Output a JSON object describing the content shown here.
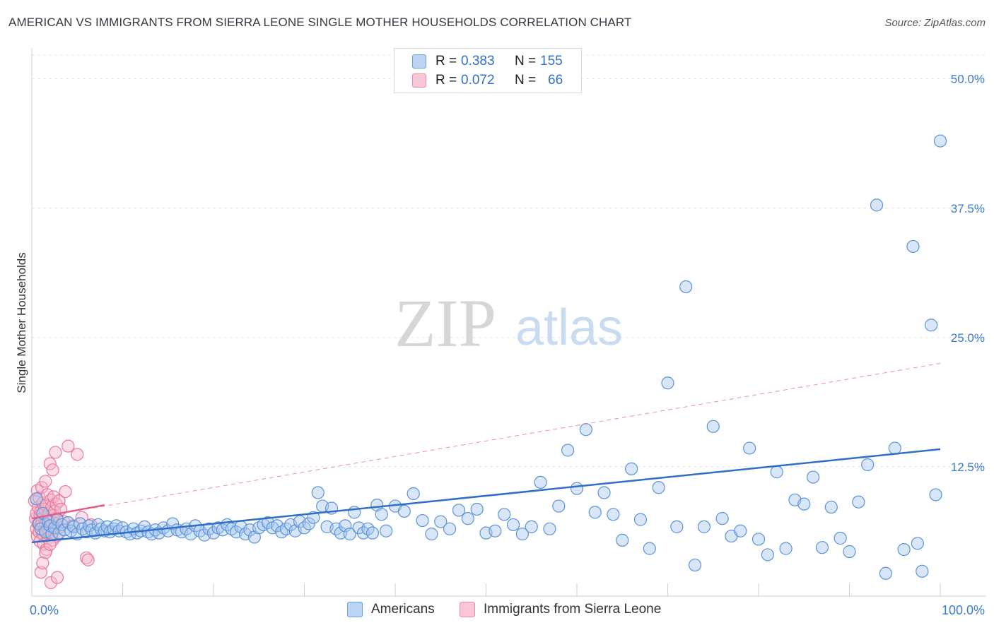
{
  "title": "AMERICAN VS IMMIGRANTS FROM SIERRA LEONE SINGLE MOTHER HOUSEHOLDS CORRELATION CHART",
  "source": "Source: ZipAtlas.com",
  "watermark": {
    "zip": "ZIP",
    "atlas": "atlas"
  },
  "legend": {
    "rows": [
      {
        "r_label": "R =",
        "r_value": "0.383",
        "n_label": "N =",
        "n_value": "155"
      },
      {
        "r_label": "R =",
        "r_value": "0.072",
        "n_label": "N =",
        "n_value": "66"
      }
    ]
  },
  "colors": {
    "americans_fill": "#a8c8f0",
    "americans_stroke": "#5b93d8",
    "americans_line": "#2f6fc9",
    "sierra_fill": "#f7b8cc",
    "sierra_stroke": "#e8789c",
    "sierra_line": "#e06090",
    "tick_text": "#3a7bd5"
  },
  "chart_data": {
    "type": "scatter",
    "title": "AMERICAN VS IMMIGRANTS FROM SIERRA LEONE SINGLE MOTHER HOUSEHOLDS CORRELATION CHART",
    "xlabel": "",
    "ylabel": "Single Mother Households",
    "xlim": [
      0,
      100
    ],
    "ylim": [
      0,
      50
    ],
    "x_tick_labels": [
      "0.0%",
      "100.0%"
    ],
    "y_ticks": [
      12.5,
      25.0,
      37.5,
      50.0
    ],
    "y_tick_labels": [
      "12.5%",
      "25.0%",
      "37.5%",
      "50.0%"
    ],
    "grid": true,
    "legend_position": "top-center",
    "series": [
      {
        "name": "Americans",
        "trend": {
          "x": [
            0,
            100
          ],
          "y": [
            5.2,
            14.2
          ],
          "style": "solid"
        },
        "points": [
          [
            0.5,
            9.4
          ],
          [
            0.8,
            7.0
          ],
          [
            1.0,
            6.5
          ],
          [
            1.2,
            8.0
          ],
          [
            1.5,
            6.2
          ],
          [
            1.8,
            7.2
          ],
          [
            2.0,
            6.8
          ],
          [
            2.2,
            6.0
          ],
          [
            2.5,
            6.6
          ],
          [
            2.8,
            7.4
          ],
          [
            3.0,
            6.1
          ],
          [
            3.3,
            6.9
          ],
          [
            3.6,
            6.4
          ],
          [
            4.0,
            7.1
          ],
          [
            4.3,
            6.3
          ],
          [
            4.6,
            6.7
          ],
          [
            5.0,
            6.0
          ],
          [
            5.3,
            7.0
          ],
          [
            5.6,
            6.5
          ],
          [
            6.0,
            6.2
          ],
          [
            6.3,
            6.8
          ],
          [
            6.6,
            6.4
          ],
          [
            7.0,
            6.1
          ],
          [
            7.3,
            6.9
          ],
          [
            7.6,
            6.5
          ],
          [
            8.0,
            6.3
          ],
          [
            8.3,
            6.7
          ],
          [
            8.6,
            6.2
          ],
          [
            9.0,
            6.5
          ],
          [
            9.3,
            6.8
          ],
          [
            9.6,
            6.3
          ],
          [
            10.0,
            6.6
          ],
          [
            10.4,
            6.2
          ],
          [
            10.8,
            6.0
          ],
          [
            11.2,
            6.5
          ],
          [
            11.6,
            6.1
          ],
          [
            12.0,
            6.3
          ],
          [
            12.4,
            6.7
          ],
          [
            12.8,
            6.2
          ],
          [
            13.2,
            6.0
          ],
          [
            13.6,
            6.4
          ],
          [
            14.0,
            6.1
          ],
          [
            14.5,
            6.6
          ],
          [
            15.0,
            6.3
          ],
          [
            15.5,
            7.0
          ],
          [
            16.0,
            6.4
          ],
          [
            16.5,
            6.2
          ],
          [
            17.0,
            6.5
          ],
          [
            17.5,
            6.0
          ],
          [
            18.0,
            6.8
          ],
          [
            18.5,
            6.3
          ],
          [
            19.0,
            5.9
          ],
          [
            19.5,
            6.5
          ],
          [
            20.0,
            6.1
          ],
          [
            20.5,
            6.6
          ],
          [
            21.0,
            6.4
          ],
          [
            21.5,
            6.9
          ],
          [
            22.0,
            6.5
          ],
          [
            22.5,
            6.2
          ],
          [
            23.0,
            6.7
          ],
          [
            23.5,
            6.0
          ],
          [
            24.0,
            6.4
          ],
          [
            24.5,
            5.7
          ],
          [
            25.0,
            6.6
          ],
          [
            25.5,
            6.9
          ],
          [
            26.0,
            7.1
          ],
          [
            26.5,
            6.6
          ],
          [
            27.0,
            6.8
          ],
          [
            27.5,
            6.2
          ],
          [
            28.0,
            6.5
          ],
          [
            28.5,
            6.9
          ],
          [
            29.0,
            6.3
          ],
          [
            29.5,
            7.2
          ],
          [
            30.0,
            6.6
          ],
          [
            30.5,
            7.0
          ],
          [
            31.0,
            7.6
          ],
          [
            31.5,
            10.0
          ],
          [
            32.0,
            8.7
          ],
          [
            32.5,
            6.7
          ],
          [
            33.0,
            8.5
          ],
          [
            33.5,
            6.5
          ],
          [
            34.0,
            6.1
          ],
          [
            34.5,
            6.8
          ],
          [
            35.0,
            6.0
          ],
          [
            35.5,
            8.1
          ],
          [
            36.0,
            6.6
          ],
          [
            36.5,
            6.1
          ],
          [
            37.0,
            6.5
          ],
          [
            37.5,
            6.1
          ],
          [
            38.0,
            8.8
          ],
          [
            38.5,
            7.9
          ],
          [
            39.0,
            6.3
          ],
          [
            40.0,
            8.7
          ],
          [
            41.0,
            8.2
          ],
          [
            42.0,
            9.9
          ],
          [
            43.0,
            7.3
          ],
          [
            44.0,
            6.0
          ],
          [
            45.0,
            7.2
          ],
          [
            46.0,
            6.5
          ],
          [
            47.0,
            8.3
          ],
          [
            48.0,
            7.5
          ],
          [
            49.0,
            8.4
          ],
          [
            50.0,
            6.1
          ],
          [
            51.0,
            6.3
          ],
          [
            52.0,
            7.9
          ],
          [
            53.0,
            6.9
          ],
          [
            54.0,
            6.0
          ],
          [
            55.0,
            6.7
          ],
          [
            56.0,
            11.0
          ],
          [
            57.0,
            6.5
          ],
          [
            58.0,
            8.7
          ],
          [
            59.0,
            14.1
          ],
          [
            60.0,
            10.4
          ],
          [
            61.0,
            16.1
          ],
          [
            62.0,
            8.1
          ],
          [
            63.0,
            10.0
          ],
          [
            64.0,
            7.9
          ],
          [
            65.0,
            5.4
          ],
          [
            66.0,
            12.3
          ],
          [
            67.0,
            7.4
          ],
          [
            68.0,
            4.6
          ],
          [
            69.0,
            10.5
          ],
          [
            70.0,
            20.6
          ],
          [
            71.0,
            6.7
          ],
          [
            72.0,
            29.9
          ],
          [
            73.0,
            3.0
          ],
          [
            74.0,
            6.7
          ],
          [
            75.0,
            16.4
          ],
          [
            76.0,
            7.5
          ],
          [
            77.0,
            5.8
          ],
          [
            78.0,
            6.3
          ],
          [
            79.0,
            14.3
          ],
          [
            80.0,
            5.5
          ],
          [
            81.0,
            4.0
          ],
          [
            82.0,
            12.0
          ],
          [
            83.0,
            4.6
          ],
          [
            84.0,
            9.3
          ],
          [
            85.0,
            8.9
          ],
          [
            86.0,
            11.5
          ],
          [
            87.0,
            4.7
          ],
          [
            88.0,
            8.6
          ],
          [
            89.0,
            5.6
          ],
          [
            90.0,
            4.3
          ],
          [
            91.0,
            9.1
          ],
          [
            92.0,
            12.7
          ],
          [
            93.0,
            37.8
          ],
          [
            94.0,
            2.2
          ],
          [
            95.0,
            14.3
          ],
          [
            96.0,
            4.5
          ],
          [
            97.0,
            33.8
          ],
          [
            98.0,
            2.4
          ],
          [
            99.0,
            26.2
          ],
          [
            99.5,
            9.8
          ],
          [
            100.0,
            44.0
          ],
          [
            97.5,
            5.1
          ]
        ]
      },
      {
        "name": "Immigrants from Sierra Leone",
        "trend": {
          "x": [
            0,
            8
          ],
          "y": [
            7.5,
            8.8
          ],
          "style": "solid",
          "extended": {
            "x": [
              0,
              100
            ],
            "y": [
              7.5,
              22.5
            ],
            "style": "dashed"
          }
        },
        "points": [
          [
            0.3,
            9.2
          ],
          [
            0.4,
            7.5
          ],
          [
            0.5,
            8.0
          ],
          [
            0.5,
            6.5
          ],
          [
            0.6,
            10.2
          ],
          [
            0.6,
            5.8
          ],
          [
            0.7,
            7.0
          ],
          [
            0.7,
            8.6
          ],
          [
            0.8,
            6.2
          ],
          [
            0.8,
            9.5
          ],
          [
            0.9,
            7.8
          ],
          [
            0.9,
            5.3
          ],
          [
            1.0,
            6.8
          ],
          [
            1.0,
            8.2
          ],
          [
            1.1,
            10.5
          ],
          [
            1.1,
            7.2
          ],
          [
            1.2,
            6.0
          ],
          [
            1.2,
            9.0
          ],
          [
            1.3,
            7.6
          ],
          [
            1.3,
            5.0
          ],
          [
            1.4,
            8.4
          ],
          [
            1.4,
            6.4
          ],
          [
            1.5,
            7.0
          ],
          [
            1.5,
            11.1
          ],
          [
            1.6,
            8.8
          ],
          [
            1.6,
            4.5
          ],
          [
            1.7,
            6.6
          ],
          [
            1.7,
            9.8
          ],
          [
            1.8,
            7.4
          ],
          [
            1.8,
            5.6
          ],
          [
            1.9,
            8.0
          ],
          [
            1.9,
            6.2
          ],
          [
            2.0,
            12.8
          ],
          [
            2.0,
            7.2
          ],
          [
            2.1,
            9.3
          ],
          [
            2.1,
            1.3
          ],
          [
            2.2,
            6.8
          ],
          [
            2.2,
            8.6
          ],
          [
            2.3,
            12.2
          ],
          [
            2.3,
            5.4
          ],
          [
            2.4,
            7.8
          ],
          [
            2.4,
            9.6
          ],
          [
            2.5,
            6.4
          ],
          [
            2.5,
            8.2
          ],
          [
            2.6,
            13.9
          ],
          [
            2.6,
            7.0
          ],
          [
            2.7,
            5.8
          ],
          [
            2.7,
            8.9
          ],
          [
            2.8,
            1.8
          ],
          [
            2.8,
            7.5
          ],
          [
            3.0,
            6.6
          ],
          [
            3.0,
            9.2
          ],
          [
            3.2,
            8.4
          ],
          [
            3.5,
            7.2
          ],
          [
            3.7,
            10.1
          ],
          [
            4.0,
            14.5
          ],
          [
            4.5,
            6.8
          ],
          [
            5.0,
            13.7
          ],
          [
            5.5,
            7.6
          ],
          [
            6.0,
            3.7
          ],
          [
            6.2,
            3.5
          ],
          [
            6.5,
            6.9
          ],
          [
            1.0,
            2.3
          ],
          [
            1.5,
            4.2
          ],
          [
            2.0,
            5.0
          ],
          [
            1.2,
            3.2
          ]
        ]
      }
    ]
  },
  "bottom_legend": {
    "items": [
      {
        "label": "Americans"
      },
      {
        "label": "Immigrants from Sierra Leone"
      }
    ]
  },
  "y_axis_label": "Single Mother Households"
}
